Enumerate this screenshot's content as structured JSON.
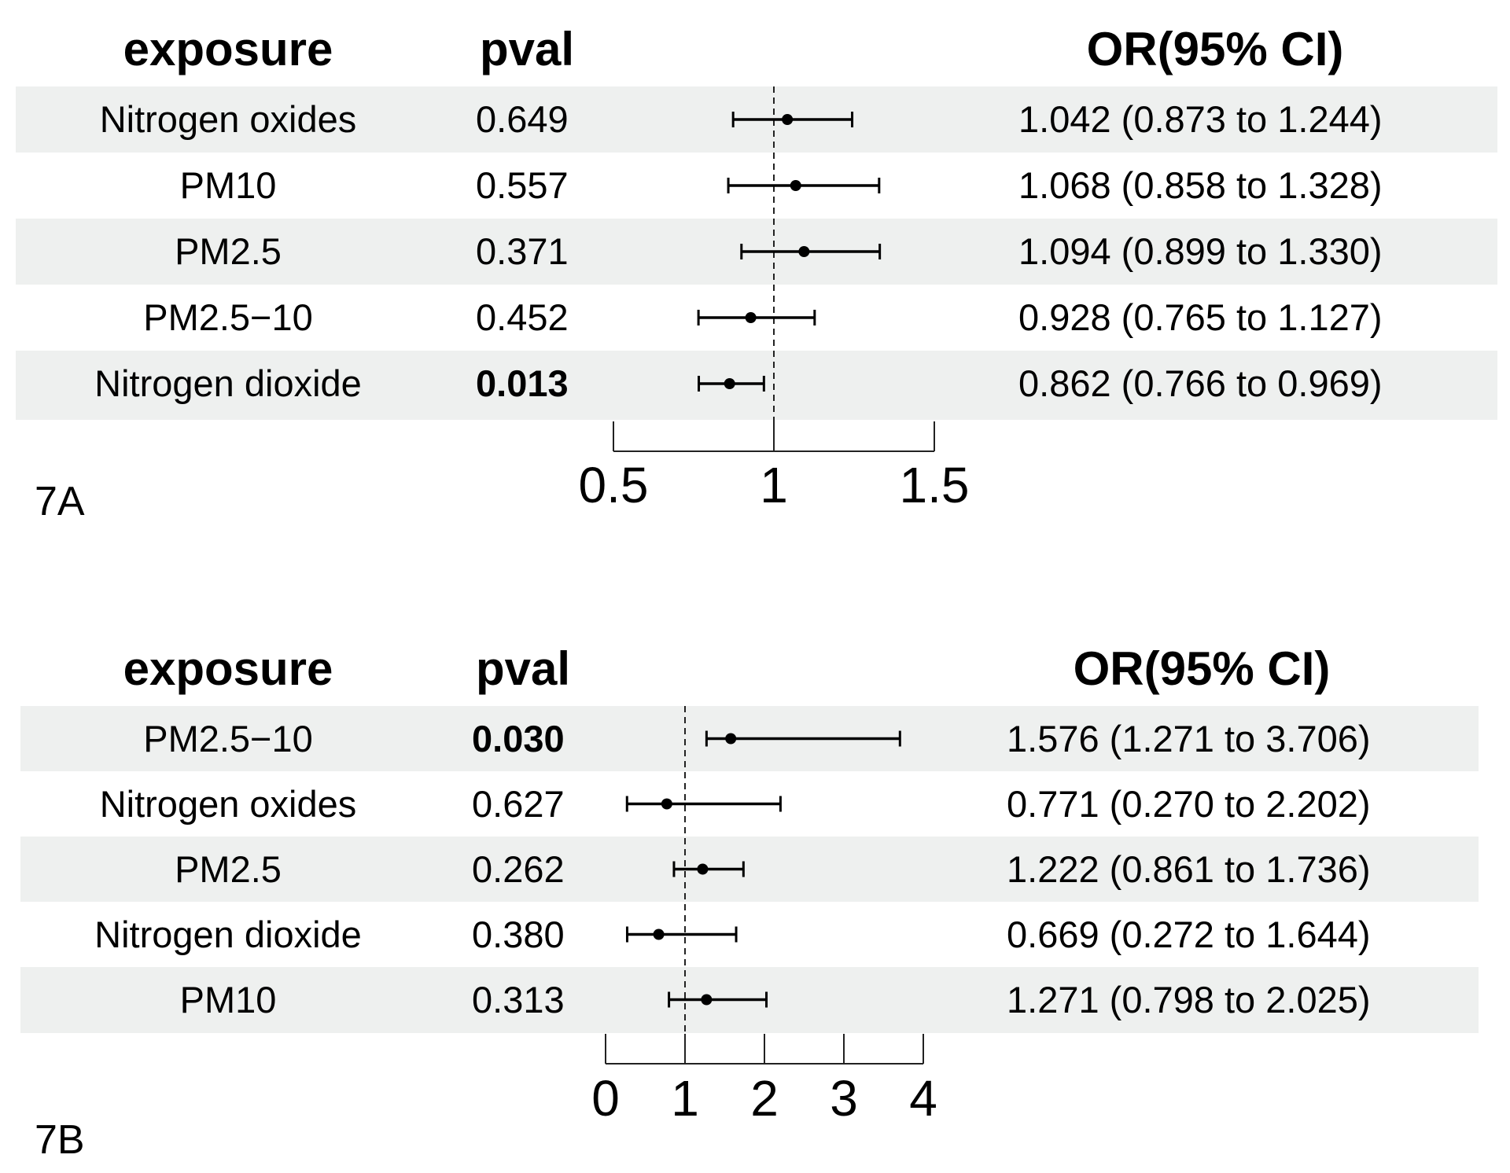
{
  "chart_data": [
    {
      "type": "forest",
      "panel_label": "7A",
      "headers": {
        "exposure": "exposure",
        "pval": "pval",
        "or": "OR(95% CI)"
      },
      "rows": [
        {
          "exposure": "Nitrogen oxides",
          "pval": "0.649",
          "significant": false,
          "or": 1.042,
          "lo": 0.873,
          "hi": 1.244,
          "or_text": "1.042 (0.873 to 1.244)"
        },
        {
          "exposure": "PM10",
          "pval": "0.557",
          "significant": false,
          "or": 1.068,
          "lo": 0.858,
          "hi": 1.328,
          "or_text": "1.068 (0.858 to 1.328)"
        },
        {
          "exposure": "PM2.5",
          "pval": "0.371",
          "significant": false,
          "or": 1.094,
          "lo": 0.899,
          "hi": 1.33,
          "or_text": "1.094 (0.899 to 1.330)"
        },
        {
          "exposure": "PM2.5−10",
          "pval": "0.452",
          "significant": false,
          "or": 0.928,
          "lo": 0.765,
          "hi": 1.127,
          "or_text": "0.928 (0.765 to 1.127)"
        },
        {
          "exposure": "Nitrogen dioxide",
          "pval": "0.013",
          "significant": true,
          "or": 0.862,
          "lo": 0.766,
          "hi": 0.969,
          "or_text": "0.862 (0.766 to 0.969)"
        }
      ],
      "xlim": [
        0.5,
        1.5
      ],
      "ticks": [
        0.5,
        1,
        1.5
      ],
      "tick_labels": [
        "0.5",
        "1",
        "1.5"
      ],
      "reference_line": 1
    },
    {
      "type": "forest",
      "panel_label": "7B",
      "headers": {
        "exposure": "exposure",
        "pval": "pval",
        "or": "OR(95% CI)"
      },
      "rows": [
        {
          "exposure": "PM2.5−10",
          "pval": "0.030",
          "significant": true,
          "or": 1.576,
          "lo": 1.271,
          "hi": 3.706,
          "or_text": "1.576 (1.271 to 3.706)"
        },
        {
          "exposure": "Nitrogen oxides",
          "pval": "0.627",
          "significant": false,
          "or": 0.771,
          "lo": 0.27,
          "hi": 2.202,
          "or_text": "0.771 (0.270 to 2.202)"
        },
        {
          "exposure": "PM2.5",
          "pval": "0.262",
          "significant": false,
          "or": 1.222,
          "lo": 0.861,
          "hi": 1.736,
          "or_text": "1.222 (0.861 to 1.736)"
        },
        {
          "exposure": "Nitrogen dioxide",
          "pval": "0.380",
          "significant": false,
          "or": 0.669,
          "lo": 0.272,
          "hi": 1.644,
          "or_text": "0.669 (0.272 to 1.644)"
        },
        {
          "exposure": "PM10",
          "pval": "0.313",
          "significant": false,
          "or": 1.271,
          "lo": 0.798,
          "hi": 2.025,
          "or_text": "1.271 (0.798 to 2.025)"
        }
      ],
      "xlim": [
        0,
        4
      ],
      "ticks": [
        0,
        1,
        2,
        3,
        4
      ],
      "tick_labels": [
        "0",
        "1",
        "2",
        "3",
        "4"
      ],
      "reference_line": 1
    }
  ]
}
